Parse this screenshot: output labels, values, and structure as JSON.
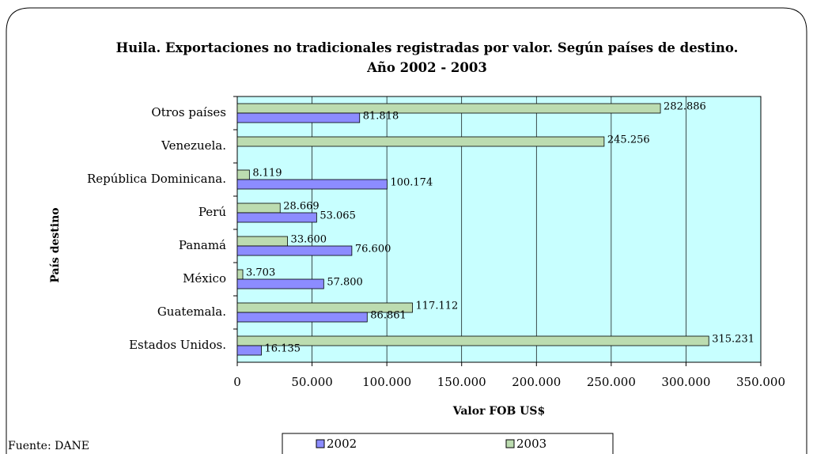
{
  "chart_data": {
    "type": "hbar",
    "title": "Huila. Exportaciones no tradicionales registradas por valor. Según países de destino. Año 2002 - 2003",
    "x_label": "Valor FOB US$",
    "y_label": "País destino",
    "source": "Fuente:  DANE",
    "categories": [
      "Estados Unidos.",
      "Guatemala.",
      "México",
      "Panamá",
      "Perú",
      "República Dominicana.",
      "Venezuela.",
      "Otros países"
    ],
    "series": [
      {
        "name": "2002",
        "color": "#8c8cff",
        "values": [
          16135,
          86861,
          57800,
          76600,
          53065,
          100174,
          null,
          81818
        ],
        "value_labels": [
          "16.135",
          "86.861",
          "57.800",
          "76.600",
          "53.065",
          "100.174",
          null,
          "81.818"
        ]
      },
      {
        "name": "2003",
        "color": "#bcdcb0",
        "values": [
          315231,
          117112,
          3703,
          33600,
          28669,
          8119,
          245256,
          282886
        ],
        "value_labels": [
          "315.231",
          "117.112",
          "3.703",
          "33.600",
          "28.669",
          "8.119",
          "245.256",
          "282.886"
        ]
      }
    ],
    "xlim": [
      0,
      350000
    ],
    "xticks": [
      0,
      {
        "value": 50000,
        "label": "50.000"
      },
      {
        "value": 100000,
        "label": "100.000"
      },
      {
        "value": 150000,
        "label": "150.000"
      },
      {
        "value": 200000,
        "label": "200.000"
      },
      {
        "value": 250000,
        "label": "250.000"
      },
      {
        "value": 300000,
        "label": "300.000"
      },
      {
        "value": 350000,
        "label": "350.000"
      }
    ],
    "grid": true,
    "legend": "bottom"
  }
}
